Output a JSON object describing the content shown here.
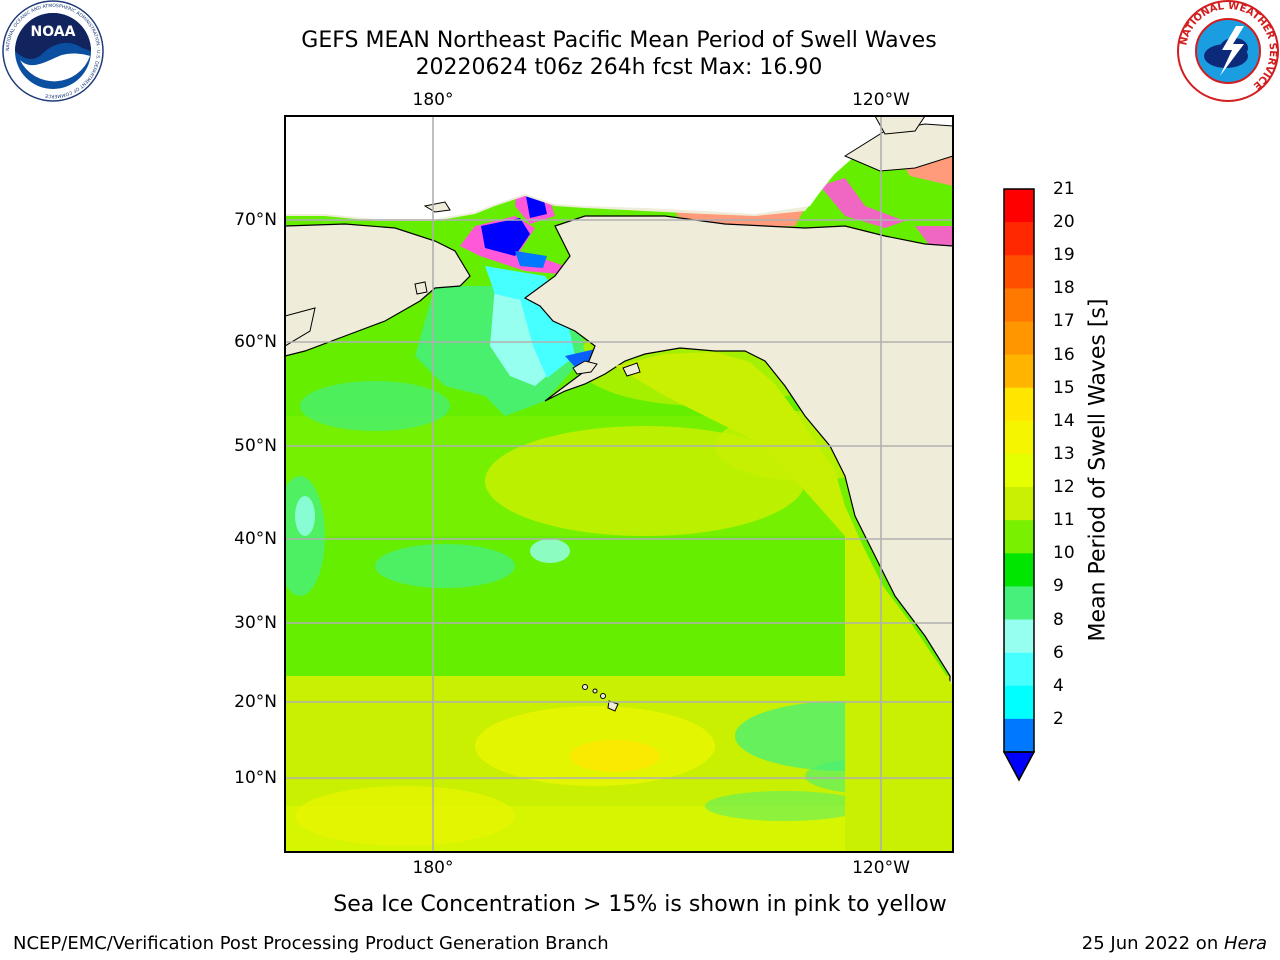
{
  "header": {
    "title_line1": "GEFS MEAN Northeast Pacific Mean Period of Swell Waves",
    "title_line2": "20220624 t06z 264h fcst   Max: 16.90"
  },
  "logos": {
    "left": {
      "name": "NOAA",
      "ring_text": "NATIONAL OCEANIC AND ATMOSPHERIC ADMINISTRATION · U.S. DEPARTMENT OF COMMERCE"
    },
    "right": {
      "ring_text": "NATIONAL WEATHER SERVICE"
    }
  },
  "map": {
    "lon_labels": [
      "180°",
      "120°W"
    ],
    "lat_labels": [
      "70°N",
      "60°N",
      "50°N",
      "40°N",
      "30°N",
      "20°N",
      "10°N"
    ],
    "colors": {
      "land": "#efedd9",
      "ocean_main": "#66ee00",
      "ocean_yellowgreen": "#c8f000",
      "grid": "#b0b0b0",
      "coast": "#000000"
    }
  },
  "colorbar": {
    "label": "Mean Period of Swell Waves [s]",
    "ticks": [
      "21",
      "20",
      "19",
      "18",
      "17",
      "16",
      "15",
      "14",
      "13",
      "12",
      "11",
      "10",
      "9",
      "8",
      "6",
      "4",
      "2"
    ],
    "colors_top_to_bottom": [
      "#ff0000",
      "#ff2800",
      "#ff5000",
      "#ff7800",
      "#ff9600",
      "#ffb400",
      "#ffe600",
      "#f5f500",
      "#e6ff00",
      "#c8f000",
      "#78f000",
      "#00e600",
      "#46f07a",
      "#96fff0",
      "#46ffff",
      "#00ffff",
      "#0078ff"
    ],
    "extend_color": "#0000ff"
  },
  "caption": "Sea Ice Concentration > 15% is shown in pink to yellow",
  "footer": {
    "left": "NCEP/EMC/Verification Post Processing Product Generation Branch",
    "right_date": "25 Jun 2022 on ",
    "right_host": "Hera"
  }
}
